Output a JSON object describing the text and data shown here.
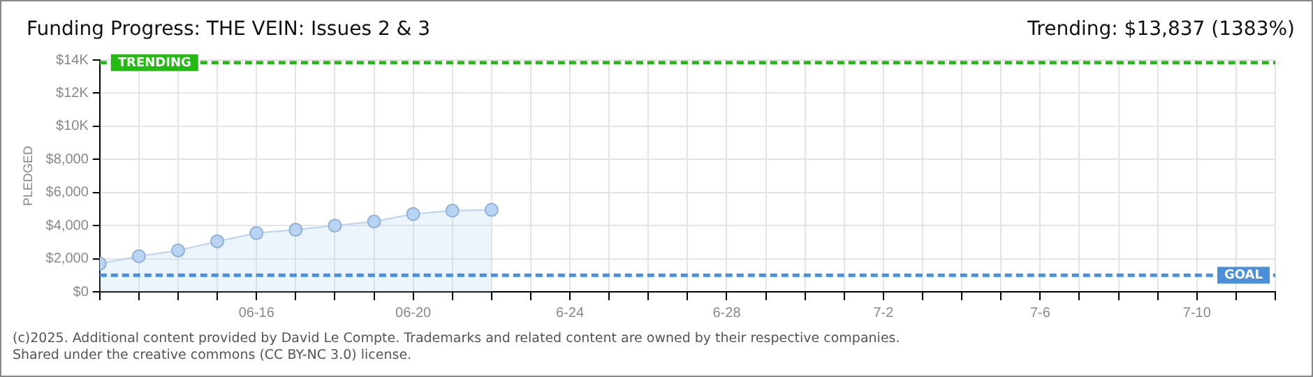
{
  "chart_data": {
    "type": "area",
    "title": "Funding Progress: THE VEIN: Issues 2 & 3",
    "subtitle": "Trending: $13,837 (1383%)",
    "ylabel": "PLEDGED",
    "x": [
      "--06-12",
      "--06-13",
      "--06-14",
      "--06-15",
      "--06-16",
      "--06-17",
      "--06-18",
      "--06-19",
      "--06-20",
      "--06-21",
      "--06-22"
    ],
    "series": [
      {
        "color": "#b8d4f2",
        "values": [
          1700,
          2150,
          2500,
          3050,
          3550,
          3750,
          4000,
          4250,
          4700,
          4900,
          4950
        ]
      }
    ],
    "xlim": [
      "--06-12",
      "--07-12"
    ],
    "xticks": [
      {
        "value": "--06-12",
        "label": null
      },
      {
        "value": "--06-13",
        "label": null
      },
      {
        "value": "--06-14",
        "label": null
      },
      {
        "value": "--06-15",
        "label": null
      },
      {
        "value": "--06-16",
        "label": "06-16"
      },
      {
        "value": "--06-17",
        "label": null
      },
      {
        "value": "--06-18",
        "label": null
      },
      {
        "value": "--06-19",
        "label": null
      },
      {
        "value": "--06-20",
        "label": "06-20"
      },
      {
        "value": "--06-21",
        "label": null
      },
      {
        "value": "--06-22",
        "label": null
      },
      {
        "value": "--06-23",
        "label": null
      },
      {
        "value": "--06-24",
        "label": "6-24"
      },
      {
        "value": "--06-25",
        "label": null
      },
      {
        "value": "--06-26",
        "label": null
      },
      {
        "value": "--06-27",
        "label": null
      },
      {
        "value": "--06-28",
        "label": "6-28"
      },
      {
        "value": "--06-29",
        "label": null
      },
      {
        "value": "--06-30",
        "label": null
      },
      {
        "value": "--07-01",
        "label": null
      },
      {
        "value": "--07-02",
        "label": "7-2"
      },
      {
        "value": "--07-03",
        "label": null
      },
      {
        "value": "--07-04",
        "label": null
      },
      {
        "value": "--07-05",
        "label": null
      },
      {
        "value": "--07-06",
        "label": "7-6"
      },
      {
        "value": "--07-07",
        "label": null
      },
      {
        "value": "--07-08",
        "label": null
      },
      {
        "value": "--07-09",
        "label": null
      },
      {
        "value": "--07-10",
        "label": "7-10"
      },
      {
        "value": "--07-11",
        "label": null
      },
      {
        "value": "--07-12",
        "label": null
      }
    ],
    "ylim": [
      0,
      14000
    ],
    "yticks": [
      {
        "value": 0,
        "label": "$0"
      },
      {
        "value": 2000,
        "label": "$2,000"
      },
      {
        "value": 4000,
        "label": "$4,000"
      },
      {
        "value": 6000,
        "label": "$6,000"
      },
      {
        "value": 8000,
        "label": "$8,000"
      },
      {
        "value": 10000,
        "label": "$10K"
      },
      {
        "value": 12000,
        "label": "$12K"
      },
      {
        "value": 14000,
        "label": "$14K"
      }
    ],
    "ref_lines": [
      {
        "axis": "y",
        "value": 13837,
        "label": "TRENDING",
        "color": "#22bb11",
        "line_style": "dashed"
      },
      {
        "axis": "y",
        "value": 1000,
        "label": "GOAL",
        "color": "#4a90d9",
        "line_style": "dashed"
      }
    ],
    "grid": true,
    "marker": "circle",
    "legend": false,
    "annotations": [
      "(c)2025. Additional content provided by David Le Compte. Trademarks and related content are owned by their respective companies.",
      "Shared under the creative commons (CC BY-NC 3.0) license."
    ]
  }
}
